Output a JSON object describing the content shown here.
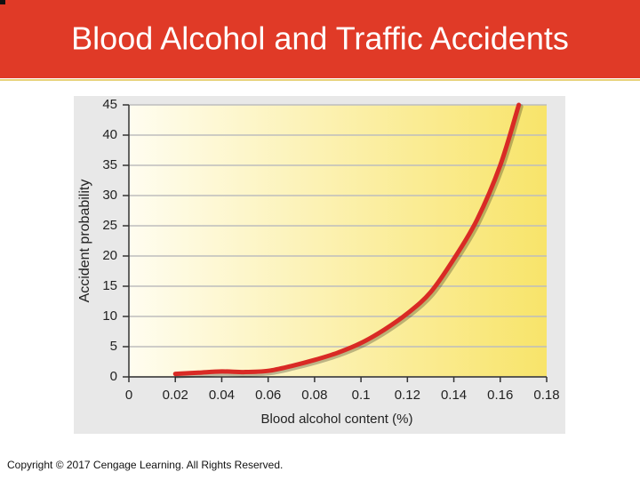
{
  "title": "Blood Alcohol and Traffic Accidents",
  "footer": "Copyright © 2017 Cengage Learning. All Rights Reserved.",
  "chart_data": {
    "type": "line",
    "xlabel": "Blood alcohol content (%)",
    "ylabel": "Accident probability",
    "x": [
      0.02,
      0.03,
      0.04,
      0.05,
      0.06,
      0.07,
      0.08,
      0.09,
      0.1,
      0.11,
      0.12,
      0.13,
      0.14,
      0.15,
      0.16,
      0.168
    ],
    "values": [
      0.5,
      0.7,
      0.9,
      0.8,
      1.0,
      1.8,
      2.8,
      4.0,
      5.6,
      7.8,
      10.5,
      14,
      19.5,
      26,
      35,
      45
    ],
    "color": "#d92a25",
    "xlim": [
      0,
      0.18
    ],
    "xticks": [
      0,
      0.02,
      0.04,
      0.06,
      0.08,
      0.1,
      0.12,
      0.14,
      0.16,
      0.18
    ],
    "ylim": [
      0,
      45
    ],
    "yticks": [
      0,
      5,
      10,
      15,
      20,
      25,
      30,
      35,
      40,
      45
    ],
    "grid": true
  }
}
